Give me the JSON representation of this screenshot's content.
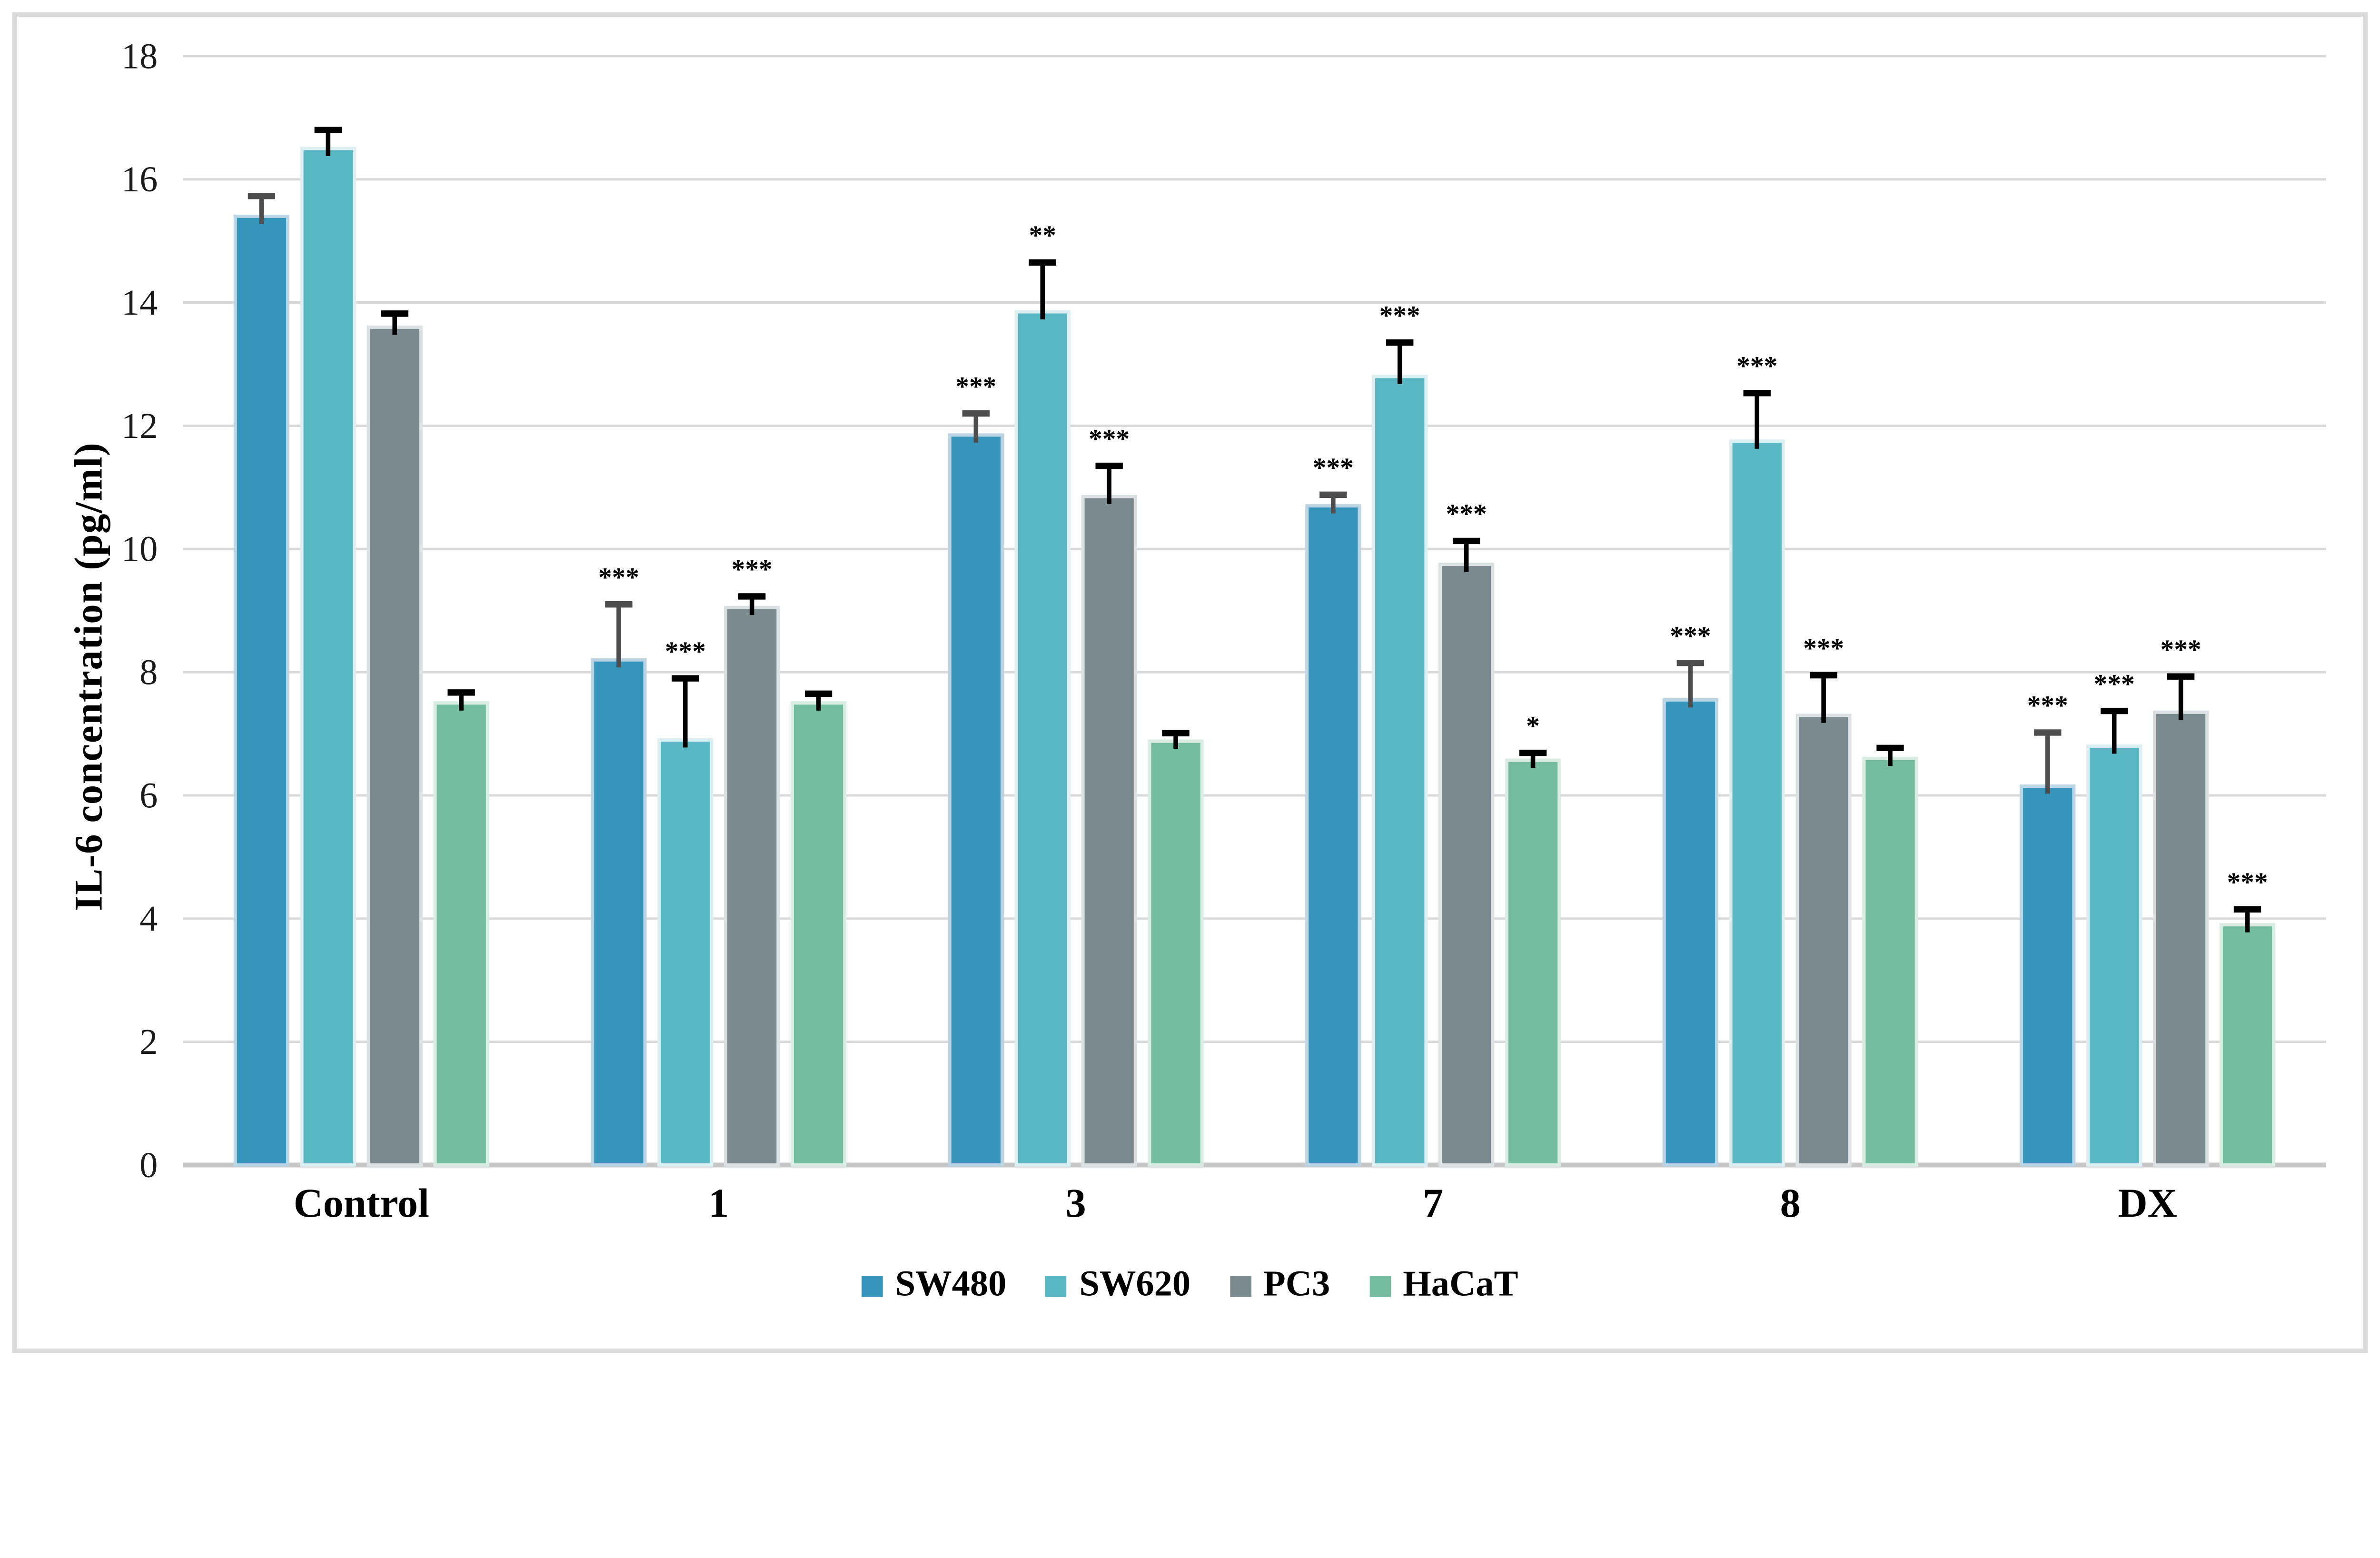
{
  "figure": {
    "background": "#ffffff",
    "border_color": "#dbdbdb",
    "gridline_color": "#d9d9d9",
    "baseline_color": "#c8c8c8"
  },
  "chart_data": {
    "type": "bar",
    "title": "",
    "xlabel": "",
    "ylabel": "IL-6 concentration (pg/ml)",
    "ylim": [
      0,
      18
    ],
    "yticks": [
      0,
      2,
      4,
      6,
      8,
      10,
      12,
      14,
      16,
      18
    ],
    "grid": true,
    "legend_position": "bottom-center",
    "categories": [
      "Control",
      "1",
      "3",
      "7",
      "8",
      "DX"
    ],
    "series": [
      {
        "name": "SW480",
        "color": "#3794ba",
        "edge_color": "#bcd5e5",
        "error_color": "#4d4d4d",
        "values": [
          15.4,
          8.2,
          11.85,
          10.7,
          7.55,
          6.15
        ],
        "errors": [
          0.33,
          0.9,
          0.35,
          0.18,
          0.6,
          0.87
        ],
        "significance": [
          "",
          "***",
          "***",
          "***",
          "***",
          "***"
        ]
      },
      {
        "name": "SW620",
        "color": "#58b7c3",
        "edge_color": "#dceff2",
        "error_color": "#000000",
        "values": [
          16.5,
          6.9,
          13.85,
          12.8,
          11.75,
          6.8
        ],
        "errors": [
          0.3,
          1.0,
          0.8,
          0.55,
          0.78,
          0.57
        ],
        "significance": [
          "",
          "***",
          "**",
          "***",
          "***",
          "***"
        ]
      },
      {
        "name": "PC3",
        "color": "#7a8a8e",
        "edge_color": "#dce2e4",
        "error_color": "#000000",
        "values": [
          13.6,
          9.05,
          10.85,
          9.75,
          7.3,
          7.35
        ],
        "errors": [
          0.22,
          0.18,
          0.5,
          0.38,
          0.65,
          0.58
        ],
        "significance": [
          "",
          "***",
          "***",
          "***",
          "***",
          "***"
        ]
      },
      {
        "name": "HaCaT",
        "color": "#74bda1",
        "edge_color": "#d9ede4",
        "error_color": "#000000",
        "values": [
          7.5,
          7.5,
          6.88,
          6.57,
          6.6,
          3.9
        ],
        "errors": [
          0.17,
          0.15,
          0.13,
          0.12,
          0.17,
          0.25
        ],
        "significance": [
          "",
          "",
          "",
          "*",
          "",
          "***"
        ]
      }
    ]
  }
}
